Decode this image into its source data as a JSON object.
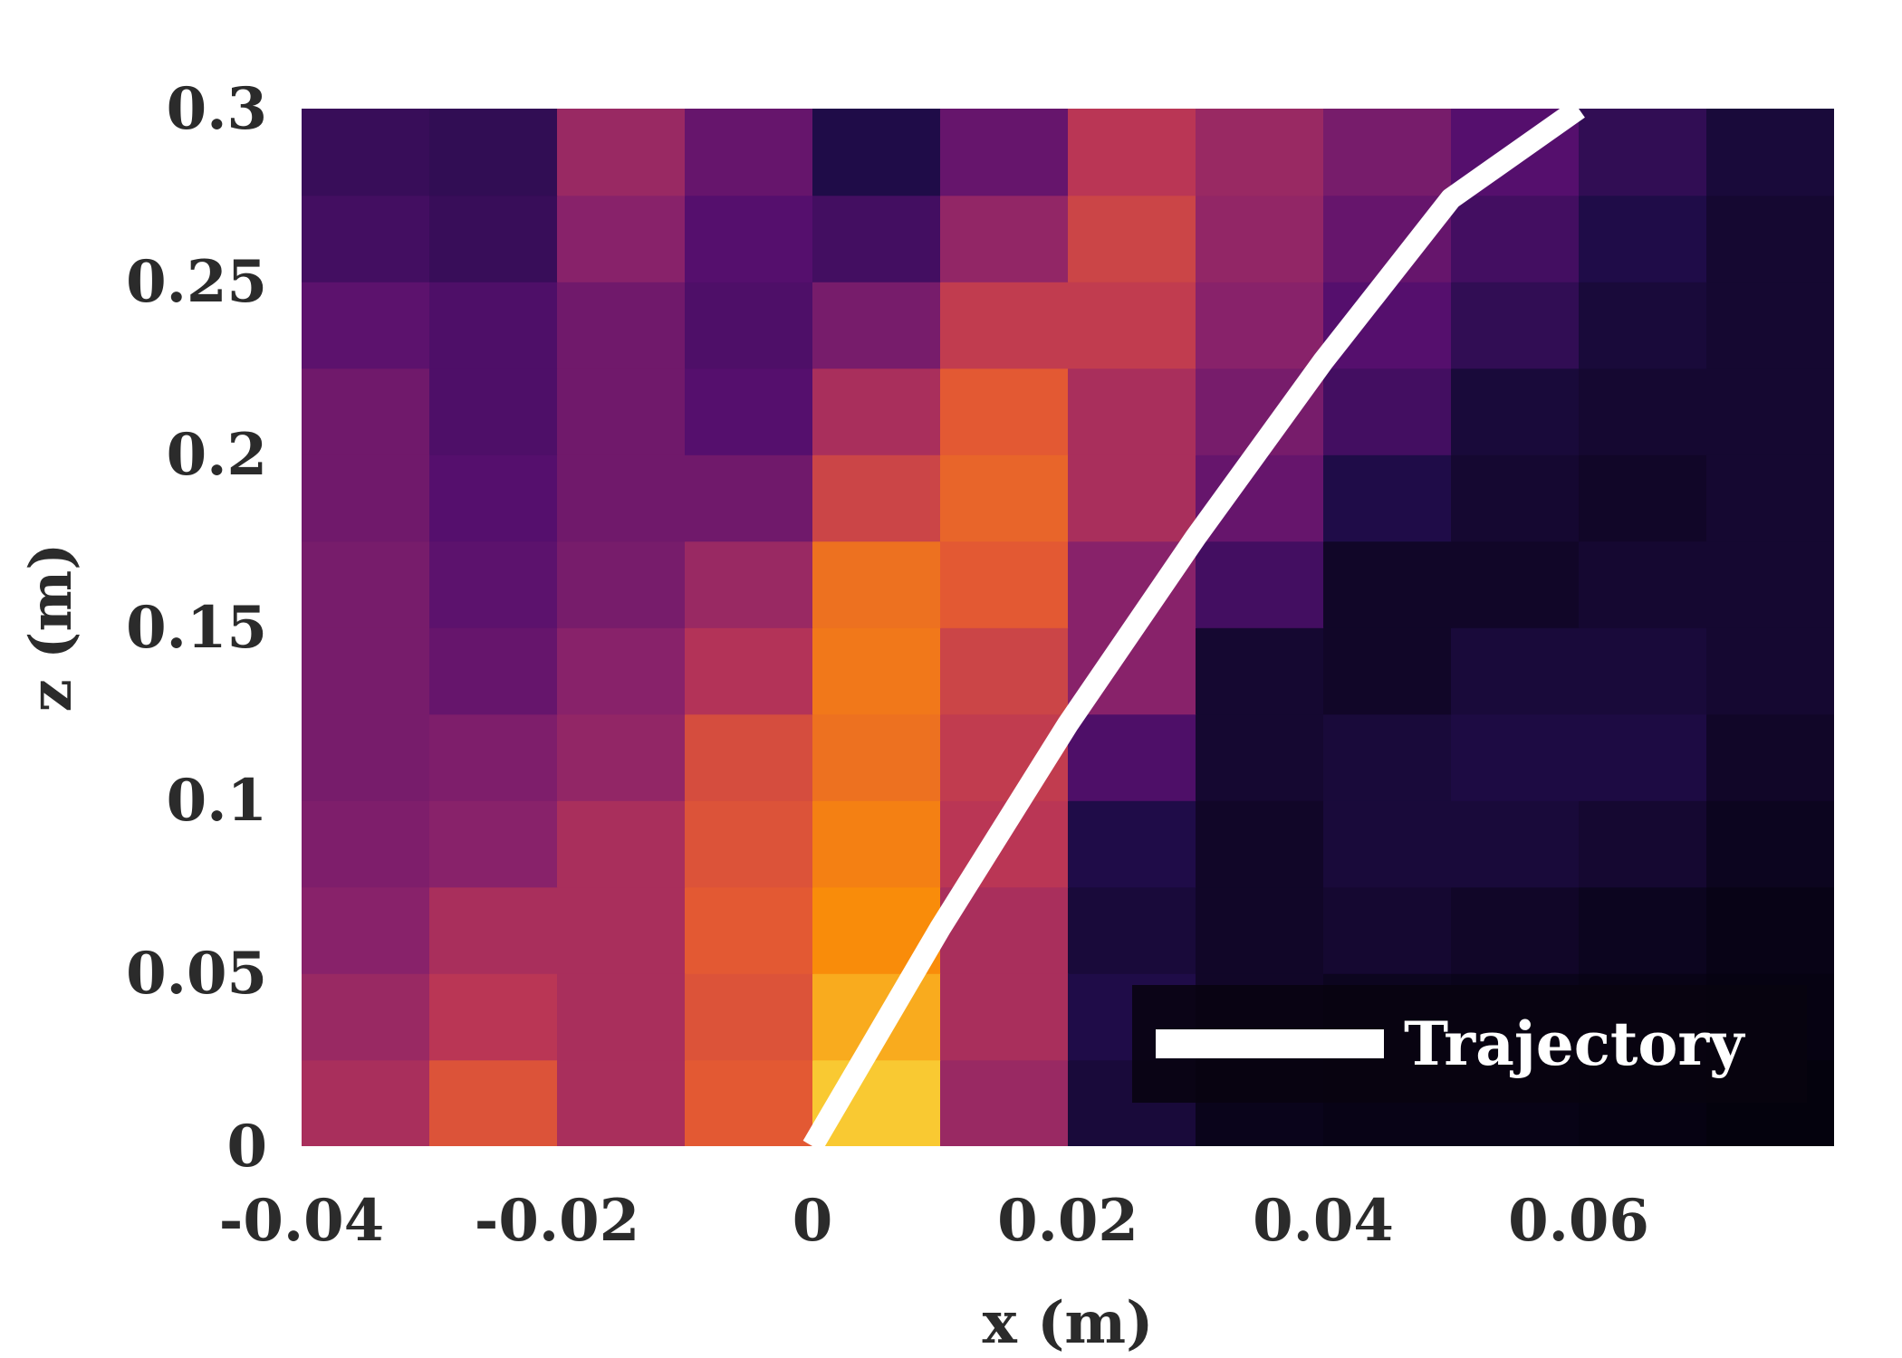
{
  "chart_data": {
    "type": "heatmap",
    "title": "",
    "xlabel": "x (m)",
    "ylabel": "z (m)",
    "xlim": [
      -0.04,
      0.08
    ],
    "ylim": [
      0,
      0.3
    ],
    "x_ticks": [
      "-0.04",
      "-0.02",
      "0",
      "0.02",
      "0.04",
      "0.06"
    ],
    "x_tick_values": [
      -0.04,
      -0.02,
      0,
      0.02,
      0.04,
      0.06
    ],
    "y_ticks": [
      "0",
      "0.05",
      "0.1",
      "0.15",
      "0.2",
      "0.25",
      "0.3"
    ],
    "y_tick_values": [
      0,
      0.05,
      0.1,
      0.15,
      0.2,
      0.25,
      0.3
    ],
    "grid": false,
    "colormap": "inferno",
    "color_range": [
      0,
      1
    ],
    "intensity_grid": {
      "x_centers": [
        -0.035,
        -0.025,
        -0.015,
        -0.005,
        0.005,
        0.015,
        0.025,
        0.035,
        0.045,
        0.055,
        0.065,
        0.075
      ],
      "z_centers": [
        0.0125,
        0.0375,
        0.0625,
        0.0875,
        0.1125,
        0.1375,
        0.1625,
        0.1875,
        0.2125,
        0.2375,
        0.2625,
        0.2875
      ],
      "values": [
        [
          0.55,
          0.7,
          0.55,
          0.72,
          0.95,
          0.5,
          0.12,
          0.05,
          0.04,
          0.04,
          0.03,
          0.02
        ],
        [
          0.5,
          0.6,
          0.55,
          0.7,
          0.9,
          0.55,
          0.15,
          0.08,
          0.06,
          0.05,
          0.04,
          0.03
        ],
        [
          0.45,
          0.55,
          0.55,
          0.72,
          0.85,
          0.55,
          0.12,
          0.08,
          0.1,
          0.08,
          0.06,
          0.04
        ],
        [
          0.42,
          0.45,
          0.55,
          0.7,
          0.82,
          0.6,
          0.15,
          0.08,
          0.12,
          0.12,
          0.1,
          0.06
        ],
        [
          0.4,
          0.42,
          0.48,
          0.68,
          0.78,
          0.62,
          0.28,
          0.1,
          0.12,
          0.14,
          0.14,
          0.08
        ],
        [
          0.4,
          0.35,
          0.45,
          0.58,
          0.8,
          0.65,
          0.45,
          0.1,
          0.08,
          0.12,
          0.12,
          0.1
        ],
        [
          0.4,
          0.32,
          0.4,
          0.5,
          0.78,
          0.72,
          0.45,
          0.25,
          0.08,
          0.08,
          0.1,
          0.1
        ],
        [
          0.38,
          0.3,
          0.38,
          0.38,
          0.65,
          0.75,
          0.55,
          0.35,
          0.15,
          0.1,
          0.08,
          0.1
        ],
        [
          0.38,
          0.28,
          0.38,
          0.3,
          0.55,
          0.72,
          0.55,
          0.4,
          0.25,
          0.12,
          0.1,
          0.1
        ],
        [
          0.32,
          0.28,
          0.38,
          0.28,
          0.4,
          0.62,
          0.62,
          0.45,
          0.3,
          0.2,
          0.12,
          0.1
        ],
        [
          0.25,
          0.22,
          0.45,
          0.3,
          0.25,
          0.48,
          0.65,
          0.48,
          0.35,
          0.25,
          0.15,
          0.1
        ],
        [
          0.22,
          0.2,
          0.5,
          0.35,
          0.15,
          0.35,
          0.6,
          0.5,
          0.4,
          0.3,
          0.2,
          0.12
        ]
      ]
    },
    "series": [
      {
        "name": "Trajectory",
        "type": "line",
        "color": "#ffffff",
        "x": [
          0,
          0.01,
          0.02,
          0.03,
          0.04,
          0.05,
          0.06
        ],
        "y": [
          0,
          0.063,
          0.122,
          0.176,
          0.227,
          0.274,
          0.3
        ]
      }
    ],
    "legend_position": "bottom-right"
  }
}
